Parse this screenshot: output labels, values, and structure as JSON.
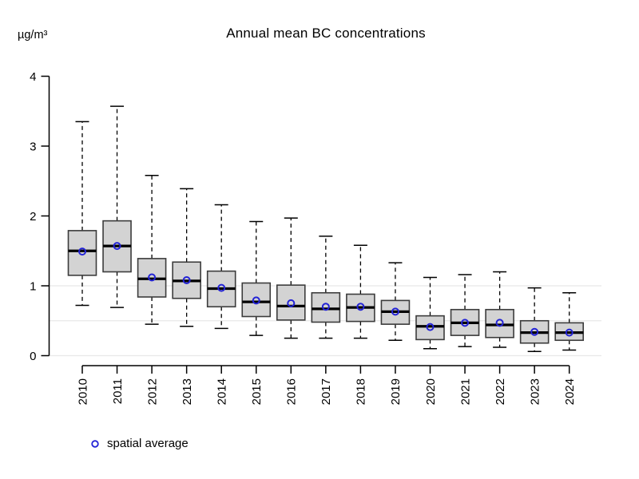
{
  "page": {
    "background": "#ffffff"
  },
  "header": {
    "title": "Annual mean BC concentrations",
    "unit_label": "µg/m³"
  },
  "legend": {
    "marker": "open-circle",
    "marker_color": "#2323d6",
    "label": "spatial average"
  },
  "chart_data": {
    "type": "boxplot",
    "title": "Annual mean BC concentrations",
    "ylabel": "µg/m³",
    "xlabel": "",
    "ylim": [
      0,
      4
    ],
    "yticks": [
      0,
      1,
      2,
      3,
      4
    ],
    "gridlines_at": [
      0,
      0.5,
      1
    ],
    "legend_position": "bottom-left",
    "legend_entries": [
      "spatial average"
    ],
    "categories": [
      "2010",
      "2011",
      "2012",
      "2013",
      "2014",
      "2015",
      "2016",
      "2017",
      "2018",
      "2019",
      "2020",
      "2021",
      "2022",
      "2023",
      "2024"
    ],
    "series": [
      {
        "name": "whisker_low",
        "values": [
          0.72,
          0.69,
          0.45,
          0.42,
          0.39,
          0.29,
          0.25,
          0.25,
          0.25,
          0.22,
          0.1,
          0.13,
          0.12,
          0.06,
          0.08
        ]
      },
      {
        "name": "q1",
        "values": [
          1.15,
          1.2,
          0.84,
          0.82,
          0.7,
          0.56,
          0.51,
          0.48,
          0.49,
          0.45,
          0.23,
          0.29,
          0.26,
          0.18,
          0.22
        ]
      },
      {
        "name": "median",
        "values": [
          1.5,
          1.57,
          1.1,
          1.07,
          0.96,
          0.77,
          0.71,
          0.67,
          0.69,
          0.63,
          0.42,
          0.47,
          0.44,
          0.33,
          0.33
        ]
      },
      {
        "name": "q3",
        "values": [
          1.79,
          1.93,
          1.39,
          1.34,
          1.21,
          1.04,
          1.01,
          0.9,
          0.88,
          0.79,
          0.57,
          0.66,
          0.66,
          0.5,
          0.47
        ]
      },
      {
        "name": "whisker_high",
        "values": [
          3.35,
          3.57,
          2.58,
          2.39,
          2.16,
          1.92,
          1.97,
          1.71,
          1.58,
          1.33,
          1.12,
          1.16,
          1.2,
          0.97,
          0.9
        ]
      },
      {
        "name": "spatial_average",
        "values": [
          1.49,
          1.57,
          1.12,
          1.08,
          0.97,
          0.79,
          0.75,
          0.7,
          0.7,
          0.63,
          0.41,
          0.47,
          0.47,
          0.34,
          0.33
        ]
      }
    ],
    "colors": {
      "box_fill": "#d3d3d3",
      "box_border": "#3c3c3c",
      "median_line": "#000000",
      "whisker": "#000000",
      "grid": "#e8e8e8",
      "axis": "#000000",
      "mean_marker": "#2323d6"
    }
  }
}
